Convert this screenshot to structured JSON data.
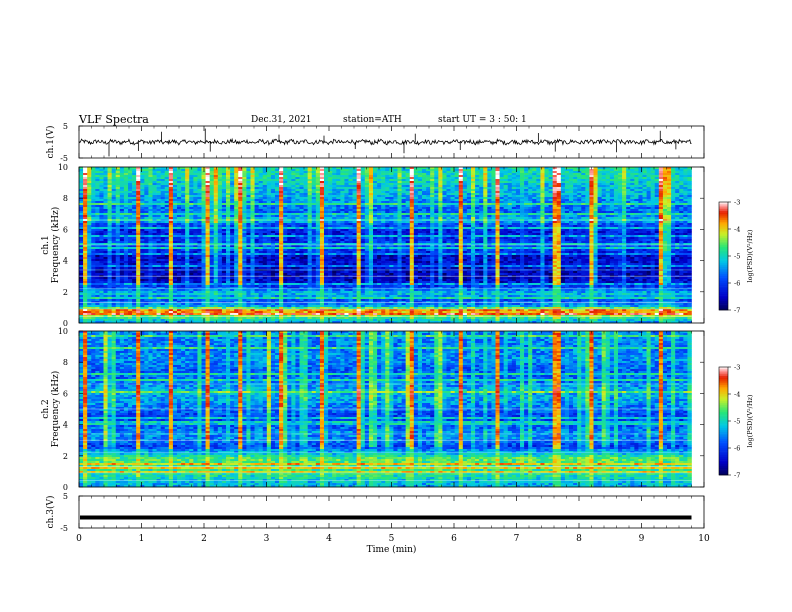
{
  "header": {
    "title": "VLF  Spectra",
    "date": "Dec.31, 2021",
    "station": "station=ATH",
    "start_ut": "start  UT  =    3  : 50: 1"
  },
  "chart_data": [
    {
      "type": "line",
      "id": "ch1-waveform",
      "ylabel": "ch.1(V)",
      "ylim": [
        -5,
        5
      ],
      "yticks": [
        "5",
        "-5"
      ],
      "xlim": [
        0,
        10
      ],
      "x_end": 9.8,
      "baseline": 0,
      "spikes": [
        {
          "x": 0.48,
          "y": -4.5
        },
        {
          "x": 0.95,
          "y": -2.8
        },
        {
          "x": 1.32,
          "y": 3.2
        },
        {
          "x": 2.02,
          "y": 4.2
        },
        {
          "x": 2.1,
          "y": -3.0
        },
        {
          "x": 3.2,
          "y": 2.3
        },
        {
          "x": 3.92,
          "y": 2.0
        },
        {
          "x": 4.42,
          "y": -2.2
        },
        {
          "x": 5.2,
          "y": -3.5
        },
        {
          "x": 5.38,
          "y": 2.6
        },
        {
          "x": 6.1,
          "y": -2.5
        },
        {
          "x": 7.35,
          "y": 2.8
        },
        {
          "x": 7.62,
          "y": -3.0
        },
        {
          "x": 8.6,
          "y": -3.2
        },
        {
          "x": 9.3,
          "y": 3.5
        },
        {
          "x": 9.55,
          "y": -2.3
        }
      ]
    },
    {
      "type": "heatmap",
      "id": "ch1-spectrogram",
      "ylabel": "ch.1\nFrequency  (kHz)",
      "ylim": [
        0,
        10
      ],
      "yticks": [
        "0",
        "2",
        "4",
        "6",
        "8",
        "10"
      ],
      "xlim": [
        0,
        10
      ],
      "x_end": 9.8,
      "colorbar": {
        "label": "log(PSD)(V²/Hz)",
        "range": [
          -7,
          -3
        ],
        "ticks": [
          "-3",
          "-4",
          "-5",
          "-6",
          "-7"
        ]
      },
      "freq_profile": [
        [
          0.0,
          -5.6
        ],
        [
          0.5,
          -4.4
        ],
        [
          0.8,
          -3.6
        ],
        [
          1.1,
          -5.5
        ],
        [
          1.5,
          -5.9
        ],
        [
          1.9,
          -5.2
        ],
        [
          2.3,
          -6.0
        ],
        [
          2.7,
          -6.5
        ],
        [
          3.2,
          -6.6
        ],
        [
          3.8,
          -6.4
        ],
        [
          4.3,
          -6.5
        ],
        [
          4.8,
          -5.9
        ],
        [
          5.3,
          -6.1
        ],
        [
          5.8,
          -6.3
        ],
        [
          6.3,
          -6.0
        ],
        [
          6.6,
          -5.1
        ],
        [
          7.0,
          -5.8
        ],
        [
          7.6,
          -5.6
        ],
        [
          8.2,
          -5.3
        ],
        [
          8.8,
          -5.2
        ],
        [
          9.4,
          -5.0
        ],
        [
          10.0,
          -5.0
        ]
      ],
      "bright_columns": [
        0.1,
        0.95,
        1.5,
        2.05,
        2.6,
        3.25,
        3.9,
        4.45,
        5.3,
        6.1,
        6.7,
        7.6,
        7.7,
        8.2,
        9.3
      ],
      "bright_column_level": -3.9
    },
    {
      "type": "heatmap",
      "id": "ch2-spectrogram",
      "ylabel": "ch.2\nFrequency  (kHz)",
      "ylim": [
        0,
        10
      ],
      "yticks": [
        "0",
        "2",
        "4",
        "6",
        "8",
        "10"
      ],
      "xlim": [
        0,
        10
      ],
      "x_end": 9.8,
      "colorbar": {
        "label": "log(PSD)(V²/Hz)",
        "range": [
          -7,
          -3
        ],
        "ticks": [
          "-3",
          "-4",
          "-5",
          "-6",
          "-7"
        ]
      },
      "freq_profile": [
        [
          0.0,
          -5.4
        ],
        [
          0.4,
          -5.2
        ],
        [
          0.8,
          -4.9
        ],
        [
          1.3,
          -4.8
        ],
        [
          1.8,
          -4.6
        ],
        [
          2.2,
          -5.3
        ],
        [
          2.6,
          -6.0
        ],
        [
          3.0,
          -5.6
        ],
        [
          3.5,
          -5.5
        ],
        [
          4.0,
          -5.9
        ],
        [
          4.5,
          -6.0
        ],
        [
          5.0,
          -5.7
        ],
        [
          5.6,
          -5.4
        ],
        [
          6.2,
          -5.3
        ],
        [
          6.8,
          -5.7
        ],
        [
          7.5,
          -5.8
        ],
        [
          8.2,
          -5.5
        ],
        [
          9.0,
          -5.6
        ],
        [
          10.0,
          -5.5
        ]
      ],
      "bright_columns": [
        0.1,
        0.95,
        1.5,
        2.05,
        2.6,
        3.25,
        3.9,
        4.45,
        5.3,
        6.1,
        6.7,
        7.6,
        7.7,
        8.2,
        9.3
      ],
      "bright_column_level": -4.0
    },
    {
      "type": "line",
      "id": "ch3-waveform",
      "ylabel": "ch.3(V)",
      "ylim": [
        -5,
        5
      ],
      "yticks": [
        "5",
        "-5"
      ],
      "xlim": [
        0,
        10
      ],
      "x_end": 9.8,
      "baseline": -1.7,
      "xlabel": "Time  (min)",
      "xticks": [
        "0",
        "1",
        "2",
        "3",
        "4",
        "5",
        "6",
        "7",
        "8",
        "9",
        "10"
      ]
    }
  ]
}
